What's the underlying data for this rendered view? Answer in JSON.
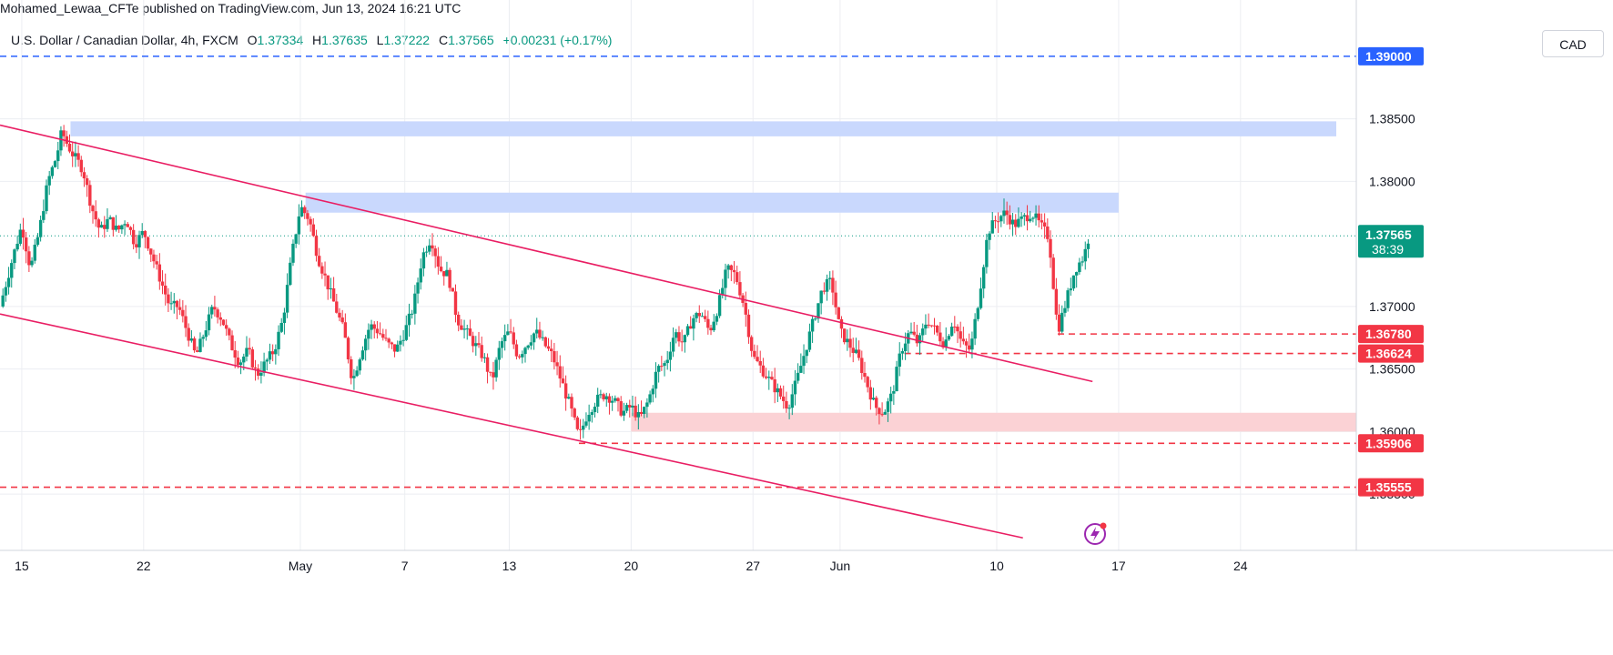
{
  "header": {
    "publisher_line": "Mohamed_Lewaa_CFTe published on TradingView.com, Jun 13, 2024 16:21 UTC"
  },
  "legend": {
    "symbol": "U.S. Dollar / Canadian Dollar, 4h, FXCM",
    "open_label": "O",
    "open": "1.37334",
    "high_label": "H",
    "high": "1.37635",
    "low_label": "L",
    "low": "1.37222",
    "close_label": "C",
    "close": "1.37565",
    "change": "+0.00231 (+0.17%)"
  },
  "currency_button": "CAD",
  "colors": {
    "up": "#089981",
    "down": "#f23645",
    "channel": "#e91e63",
    "blue_line": "#2962ff",
    "red_line": "#f23645",
    "blue_zone": "#c9d8fd",
    "red_zone": "#fbd2d5",
    "grid": "#eceef2"
  },
  "chart_data": {
    "type": "candlestick",
    "symbol": "USD/CAD",
    "timeframe": "4h",
    "ylim": [
      1.3505,
      1.3945
    ],
    "y_ticks": [
      {
        "label": "1.38500",
        "value": 1.385
      },
      {
        "label": "1.38000",
        "value": 1.38
      },
      {
        "label": "1.37000",
        "value": 1.37
      },
      {
        "label": "1.36500",
        "value": 1.365
      },
      {
        "label": "1.36000",
        "value": 1.36
      },
      {
        "label": "1.35500",
        "value": 1.355
      }
    ],
    "x_ticks": [
      {
        "label": "15",
        "day": 0
      },
      {
        "label": "22",
        "day": 7
      },
      {
        "label": "May",
        "day": 16
      },
      {
        "label": "7",
        "day": 22
      },
      {
        "label": "13",
        "day": 28
      },
      {
        "label": "20",
        "day": 35
      },
      {
        "label": "27",
        "day": 42
      },
      {
        "label": "Jun",
        "day": 47
      },
      {
        "label": "10",
        "day": 56
      },
      {
        "label": "17",
        "day": 63
      },
      {
        "label": "24",
        "day": 70
      }
    ],
    "x_domain_days": [
      -1.25,
      76.65
    ],
    "current_price": {
      "value": "1.37565",
      "countdown": "38:39"
    },
    "horizontal_lines": [
      {
        "label": "1.39000",
        "value": 1.39,
        "color": "blue",
        "from_day": -1.25
      },
      {
        "label": "1.36780",
        "value": 1.3678,
        "color": "red",
        "from_day": 59.5
      },
      {
        "label": "1.36624",
        "value": 1.36624,
        "color": "red",
        "from_day": 50.7
      },
      {
        "label": "1.35906",
        "value": 1.35906,
        "color": "red",
        "from_day": 32.0
      },
      {
        "label": "1.35555",
        "value": 1.35555,
        "color": "red",
        "from_day": -1.25
      }
    ],
    "zones": [
      {
        "color": "blue",
        "from_day": 2.8,
        "to_day": 75.5,
        "low": 1.3836,
        "high": 1.3848
      },
      {
        "color": "blue",
        "from_day": 16.3,
        "to_day": 63.0,
        "low": 1.3775,
        "high": 1.3791
      },
      {
        "color": "red",
        "from_day": 35.0,
        "to_day": 76.65,
        "low": 1.36,
        "high": 1.3615
      }
    ],
    "trendlines": [
      {
        "name": "channel upper",
        "from": [
          -1.25,
          1.3845
        ],
        "to": [
          61.5,
          1.364
        ]
      },
      {
        "name": "channel lower",
        "from": [
          -1.25,
          1.3694
        ],
        "to": [
          57.5,
          1.3515
        ]
      }
    ],
    "price_path": [
      [
        -1.25,
        1.37
      ],
      [
        -0.5,
        1.374
      ],
      [
        0.0,
        1.3765
      ],
      [
        0.5,
        1.373
      ],
      [
        1.0,
        1.376
      ],
      [
        1.5,
        1.38
      ],
      [
        2.0,
        1.382
      ],
      [
        2.3,
        1.384
      ],
      [
        2.6,
        1.383
      ],
      [
        3.0,
        1.382
      ],
      [
        3.5,
        1.381
      ],
      [
        4.0,
        1.378
      ],
      [
        4.5,
        1.376
      ],
      [
        5.0,
        1.377
      ],
      [
        5.5,
        1.376
      ],
      [
        6.0,
        1.377
      ],
      [
        6.5,
        1.375
      ],
      [
        7.0,
        1.376
      ],
      [
        7.5,
        1.374
      ],
      [
        8.0,
        1.372
      ],
      [
        8.5,
        1.37
      ],
      [
        9.0,
        1.37
      ],
      [
        9.5,
        1.368
      ],
      [
        10.0,
        1.366
      ],
      [
        10.5,
        1.368
      ],
      [
        11.0,
        1.37
      ],
      [
        11.5,
        1.369
      ],
      [
        12.0,
        1.367
      ],
      [
        12.5,
        1.3655
      ],
      [
        13.0,
        1.3665
      ],
      [
        13.5,
        1.3645
      ],
      [
        14.0,
        1.3655
      ],
      [
        14.5,
        1.3665
      ],
      [
        15.0,
        1.369
      ],
      [
        15.5,
        1.374
      ],
      [
        16.0,
        1.378
      ],
      [
        16.5,
        1.377
      ],
      [
        17.0,
        1.374
      ],
      [
        17.5,
        1.372
      ],
      [
        18.0,
        1.37
      ],
      [
        18.5,
        1.368
      ],
      [
        19.0,
        1.364
      ],
      [
        19.5,
        1.3665
      ],
      [
        20.0,
        1.3685
      ],
      [
        20.5,
        1.368
      ],
      [
        21.0,
        1.367
      ],
      [
        21.5,
        1.3665
      ],
      [
        22.0,
        1.368
      ],
      [
        22.5,
        1.37
      ],
      [
        23.0,
        1.374
      ],
      [
        23.5,
        1.3755
      ],
      [
        24.0,
        1.373
      ],
      [
        24.5,
        1.3725
      ],
      [
        25.0,
        1.369
      ],
      [
        25.5,
        1.368
      ],
      [
        26.0,
        1.367
      ],
      [
        26.5,
        1.366
      ],
      [
        27.0,
        1.364
      ],
      [
        27.5,
        1.367
      ],
      [
        28.0,
        1.368
      ],
      [
        28.5,
        1.366
      ],
      [
        29.0,
        1.367
      ],
      [
        29.5,
        1.368
      ],
      [
        30.0,
        1.367
      ],
      [
        30.5,
        1.366
      ],
      [
        31.0,
        1.364
      ],
      [
        31.5,
        1.362
      ],
      [
        32.0,
        1.3595
      ],
      [
        32.5,
        1.3615
      ],
      [
        33.0,
        1.3625
      ],
      [
        33.5,
        1.363
      ],
      [
        34.0,
        1.3625
      ],
      [
        34.5,
        1.3615
      ],
      [
        35.0,
        1.362
      ],
      [
        35.5,
        1.361
      ],
      [
        36.0,
        1.3625
      ],
      [
        36.5,
        1.365
      ],
      [
        37.0,
        1.3655
      ],
      [
        37.5,
        1.368
      ],
      [
        38.0,
        1.367
      ],
      [
        38.5,
        1.369
      ],
      [
        39.0,
        1.3695
      ],
      [
        39.5,
        1.368
      ],
      [
        40.0,
        1.37
      ],
      [
        40.5,
        1.373
      ],
      [
        41.0,
        1.3725
      ],
      [
        41.5,
        1.37
      ],
      [
        42.0,
        1.366
      ],
      [
        42.5,
        1.365
      ],
      [
        43.0,
        1.364
      ],
      [
        43.5,
        1.363
      ],
      [
        44.0,
        1.362
      ],
      [
        44.5,
        1.364
      ],
      [
        45.0,
        1.3665
      ],
      [
        45.5,
        1.369
      ],
      [
        46.0,
        1.3715
      ],
      [
        46.5,
        1.372
      ],
      [
        47.0,
        1.368
      ],
      [
        47.5,
        1.367
      ],
      [
        48.0,
        1.366
      ],
      [
        48.5,
        1.364
      ],
      [
        49.0,
        1.362
      ],
      [
        49.5,
        1.3615
      ],
      [
        50.0,
        1.363
      ],
      [
        50.5,
        1.3665
      ],
      [
        51.0,
        1.368
      ],
      [
        51.5,
        1.367
      ],
      [
        52.0,
        1.369
      ],
      [
        52.5,
        1.368
      ],
      [
        53.0,
        1.367
      ],
      [
        53.5,
        1.369
      ],
      [
        54.0,
        1.367
      ],
      [
        54.5,
        1.3665
      ],
      [
        55.0,
        1.371
      ],
      [
        55.5,
        1.376
      ],
      [
        56.0,
        1.377
      ],
      [
        56.5,
        1.3775
      ],
      [
        57.0,
        1.3765
      ],
      [
        57.5,
        1.377
      ],
      [
        58.0,
        1.3775
      ],
      [
        58.5,
        1.3765
      ],
      [
        59.0,
        1.3755
      ],
      [
        59.5,
        1.368
      ],
      [
        60.0,
        1.3705
      ],
      [
        60.5,
        1.373
      ],
      [
        61.0,
        1.374
      ],
      [
        61.3,
        1.37565
      ]
    ]
  }
}
